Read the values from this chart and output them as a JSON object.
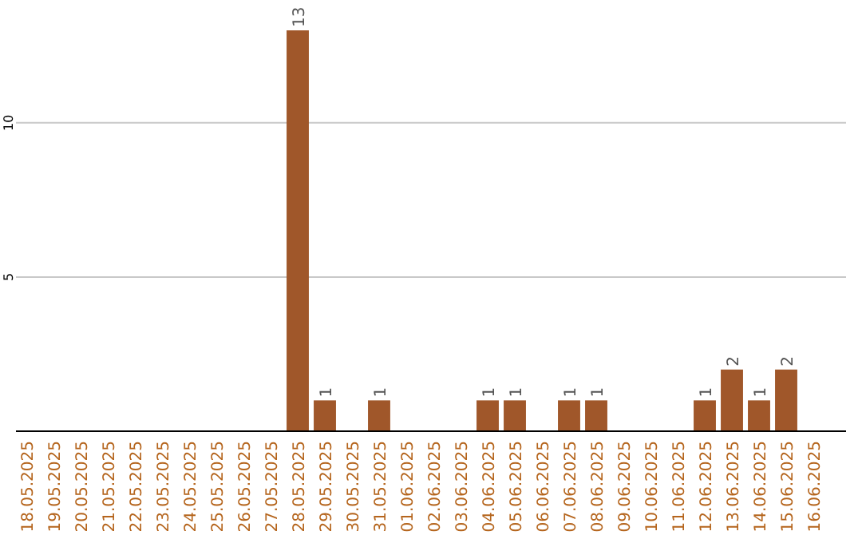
{
  "chart_data": {
    "type": "bar",
    "categories": [
      "18.05.2025",
      "19.05.2025",
      "20.05.2025",
      "21.05.2025",
      "22.05.2025",
      "23.05.2025",
      "24.05.2025",
      "25.05.2025",
      "26.05.2025",
      "27.05.2025",
      "28.05.2025",
      "29.05.2025",
      "30.05.2025",
      "31.05.2025",
      "01.06.2025",
      "02.06.2025",
      "03.06.2025",
      "04.06.2025",
      "05.06.2025",
      "06.06.2025",
      "07.06.2025",
      "08.06.2025",
      "09.06.2025",
      "10.06.2025",
      "11.06.2025",
      "12.06.2025",
      "13.06.2025",
      "14.06.2025",
      "15.06.2025",
      "16.06.2025"
    ],
    "values": [
      0,
      0,
      0,
      0,
      0,
      0,
      0,
      0,
      0,
      0,
      13,
      1,
      0,
      1,
      0,
      0,
      0,
      1,
      1,
      0,
      1,
      1,
      0,
      0,
      0,
      1,
      2,
      1,
      2,
      0
    ],
    "value_labels": [
      null,
      null,
      null,
      null,
      null,
      null,
      null,
      null,
      null,
      null,
      "13",
      "1",
      null,
      "1",
      null,
      null,
      null,
      "1",
      "1",
      null,
      "1",
      "1",
      null,
      null,
      null,
      "1",
      "2",
      "1",
      "2",
      null
    ],
    "color": "#a0572a",
    "ylim": [
      0,
      13
    ],
    "yticks": [
      5,
      10
    ],
    "grid": "y"
  }
}
